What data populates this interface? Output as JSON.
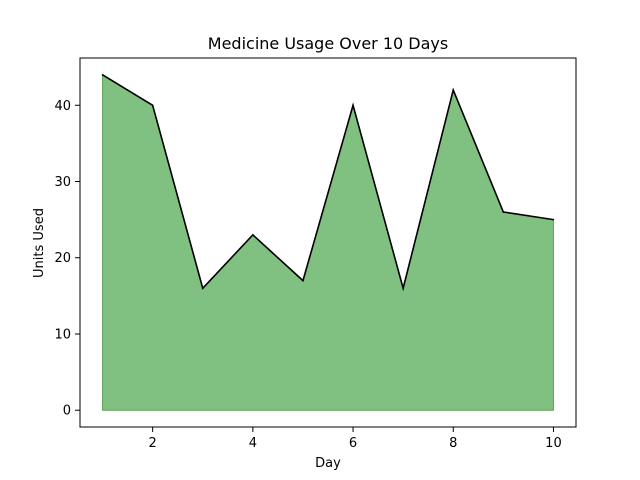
{
  "chart_data": {
    "type": "area",
    "title": "Medicine Usage Over 10 Days",
    "xlabel": "Day",
    "ylabel": "Units Used",
    "x": [
      1,
      2,
      3,
      4,
      5,
      6,
      7,
      8,
      9,
      10
    ],
    "series": [
      {
        "values": [
          44,
          40,
          16,
          23,
          17,
          40,
          16,
          42,
          26,
          25
        ],
        "fill_color": "#80c080",
        "line_color": "#000000"
      }
    ],
    "xlim": [
      0.55,
      10.45
    ],
    "ylim": [
      -2.2,
      46.2
    ],
    "xticks": [
      2,
      4,
      6,
      8,
      10
    ],
    "yticks": [
      0,
      10,
      20,
      30,
      40
    ],
    "grid": false,
    "legend": "none"
  }
}
